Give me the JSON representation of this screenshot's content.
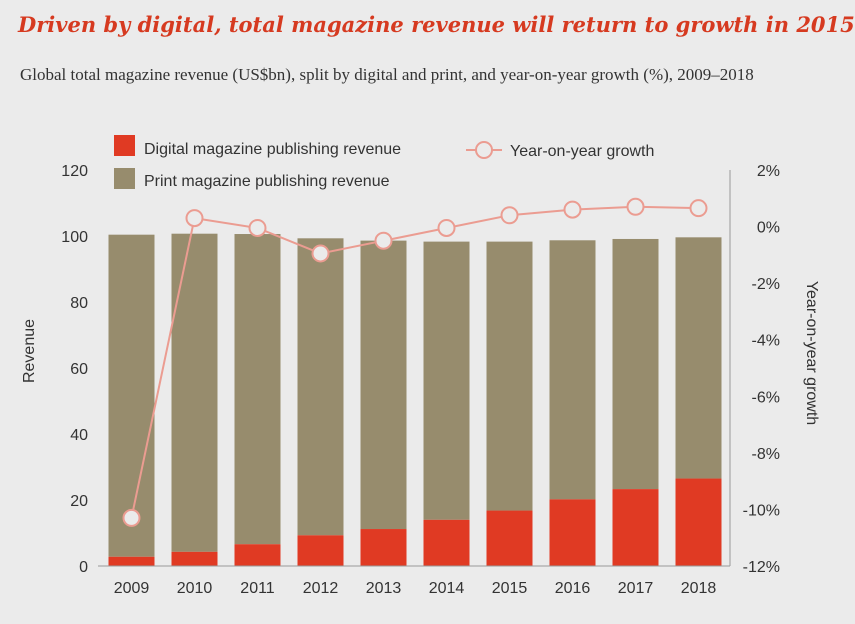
{
  "title": "Driven by digital, total magazine revenue will return to growth in 2015",
  "subtitle": "Global total magazine revenue (US$bn), split by digital and print, and year-on-year growth (%), 2009–2018",
  "colors": {
    "digital": "#e03a23",
    "print": "#978c6d",
    "growth": "#eb9c91",
    "background": "#ebebeb",
    "title": "#d63a20"
  },
  "chart_data": {
    "type": "bar",
    "stacked": true,
    "categories": [
      "2009",
      "2010",
      "2011",
      "2012",
      "2013",
      "2014",
      "2015",
      "2016",
      "2017",
      "2018"
    ],
    "series": [
      {
        "name": "Digital magazine publishing revenue",
        "axis": "left",
        "values": [
          2.8,
          4.3,
          6.6,
          9.3,
          11.2,
          14.0,
          16.8,
          20.2,
          23.3,
          26.5
        ]
      },
      {
        "name": "Print magazine publishing revenue",
        "axis": "left",
        "values": [
          97.6,
          96.4,
          94.0,
          90.0,
          87.4,
          84.3,
          81.5,
          78.5,
          75.8,
          73.1
        ]
      },
      {
        "name": "Year-on-year growth",
        "type": "line",
        "axis": "right",
        "values": [
          -10.3,
          0.3,
          -0.05,
          -0.95,
          -0.5,
          -0.05,
          0.4,
          0.6,
          0.7,
          0.65
        ]
      }
    ],
    "ylabel": "Revenue",
    "y2label": "Year-on-year growth",
    "ylim": [
      0,
      120
    ],
    "y2lim": [
      -12,
      2
    ],
    "yticks": [
      "0",
      "20",
      "40",
      "60",
      "80",
      "100",
      "120"
    ],
    "y2ticks": [
      "2%",
      "0%",
      "-2%",
      "-4%",
      "-6%",
      "-8%",
      "-10%",
      "-12%"
    ],
    "legend": [
      "Digital magazine publishing revenue",
      "Print magazine publishing revenue",
      "Year-on-year growth"
    ]
  }
}
